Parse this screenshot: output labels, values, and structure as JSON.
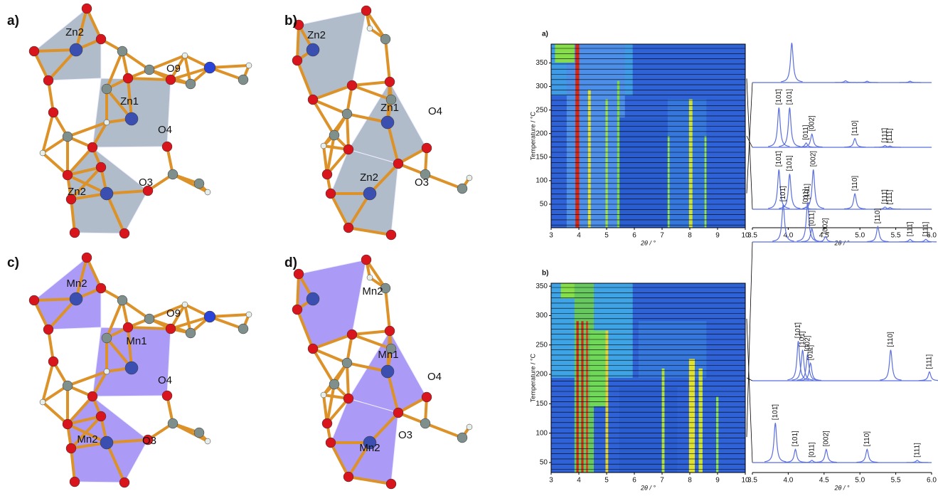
{
  "structures": [
    {
      "panel": "a)",
      "labels": [
        "Zn2",
        "Zn1",
        "O9",
        "O4",
        "Zn2",
        "O3"
      ]
    },
    {
      "panel": "b)",
      "labels": [
        "Zn2",
        "Zn1",
        "O4",
        "Zn2",
        "O3"
      ]
    },
    {
      "panel": "c)",
      "labels": [
        "Mn2",
        "Mn1",
        "O9",
        "O4",
        "Mn2",
        "O3"
      ]
    },
    {
      "panel": "d)",
      "labels": [
        "Mn2",
        "Mn1",
        "O4",
        "Mn2",
        "O3"
      ]
    }
  ],
  "charts": [
    {
      "panel": "a)",
      "contour": {
        "y_label": "Temperature / °C",
        "x_label": "2θ / °",
        "xlim": [
          3,
          10
        ],
        "xticks": [
          3,
          4,
          5,
          6,
          7,
          8,
          9,
          10
        ],
        "ylim": [
          0,
          390
        ],
        "yticks": [
          50,
          100,
          150,
          200,
          250,
          300,
          350
        ]
      },
      "patterns": {
        "x_label": "2θ / °",
        "xlim": [
          3.5,
          6.0
        ],
        "xticks": [
          3.5,
          {
            "value": 4,
            "label": "4.0"
          },
          4.5,
          {
            "value": 5,
            "label": "5.0"
          },
          5.5,
          {
            "value": 6,
            "label": "6.0"
          }
        ],
        "traces": [
          {
            "peaks": [
              {
                "x": 4.05,
                "height": 0.9
              },
              {
                "x": 4.8,
                "height": 0.04
              },
              {
                "x": 5.1,
                "height": 0.03
              },
              {
                "x": 5.7,
                "height": 0.03
              }
            ]
          },
          {
            "peaks": [
              {
                "x": 3.87,
                "height": 0.9,
                "label": "[101̄]"
              },
              {
                "x": 4.02,
                "height": 0.9,
                "label": "[101]"
              },
              {
                "x": 4.25,
                "height": 0.1,
                "label": "[011]"
              },
              {
                "x": 4.33,
                "height": 0.3,
                "label": "[002]"
              },
              {
                "x": 4.93,
                "height": 0.2,
                "label": "[110]"
              },
              {
                "x": 5.35,
                "height": 0.04,
                "label": "[111̄]"
              },
              {
                "x": 5.42,
                "height": 0.03,
                "label": "[111]"
              }
            ]
          },
          {
            "peaks": [
              {
                "x": 3.87,
                "height": 0.9,
                "label": "[101̄]"
              },
              {
                "x": 4.02,
                "height": 0.8,
                "label": "[101]"
              },
              {
                "x": 4.25,
                "height": 0.05,
                "label": "[011]"
              },
              {
                "x": 4.35,
                "height": 0.9,
                "label": "[002]"
              },
              {
                "x": 4.93,
                "height": 0.35,
                "label": "[110]"
              },
              {
                "x": 5.35,
                "height": 0.05,
                "label": "[111̄]"
              },
              {
                "x": 5.42,
                "height": 0.04,
                "label": "[111]"
              }
            ]
          }
        ]
      }
    },
    {
      "panel": "b)",
      "contour": {
        "y_label": "Temperature / °C",
        "x_label": "2θ / °",
        "xlim": [
          3,
          10
        ],
        "xticks": [
          3,
          4,
          5,
          6,
          7,
          8,
          9,
          10
        ],
        "ylim": [
          33,
          355
        ],
        "yticks": [
          50,
          100,
          150,
          200,
          250,
          300,
          350
        ]
      },
      "patterns": {
        "x_label": "2θ / °",
        "xlim": [
          3.5,
          6.0
        ],
        "xticks": [
          3.5,
          {
            "value": 4,
            "label": "4.0"
          },
          4.5,
          {
            "value": 5,
            "label": "5.0"
          },
          5.5,
          {
            "value": 6,
            "label": "6.0"
          }
        ],
        "traces": [
          {
            "peaks": [
              {
                "x": 3.93,
                "height": 0.85,
                "label": "[101̄]"
              },
              {
                "x": 4.27,
                "height": 0.9,
                "label": "[101]"
              },
              {
                "x": 4.33,
                "height": 0.3,
                "label": "[011]"
              },
              {
                "x": 4.52,
                "height": 0.12,
                "label": "[002]"
              },
              {
                "x": 5.25,
                "height": 0.35,
                "label": "[110]"
              },
              {
                "x": 5.7,
                "height": 0.06,
                "label": "[111̄]"
              },
              {
                "x": 5.92,
                "height": 0.06,
                "label": "[111]"
              }
            ]
          },
          {
            "peaks": [
              {
                "x": 4.14,
                "height": 0.9,
                "label": "[101̄]"
              },
              {
                "x": 4.2,
                "height": 0.7,
                "label": "[101]"
              },
              {
                "x": 4.27,
                "height": 0.6,
                "label": "[002]"
              },
              {
                "x": 4.31,
                "height": 0.4,
                "label": "[011]"
              },
              {
                "x": 5.43,
                "height": 0.7,
                "label": "[110]"
              },
              {
                "x": 5.97,
                "height": 0.2,
                "label": "[111]"
              }
            ]
          },
          {
            "peaks": [
              {
                "x": 3.82,
                "height": 0.9,
                "label": "[101̄]"
              },
              {
                "x": 4.1,
                "height": 0.3,
                "label": "[101]"
              },
              {
                "x": 4.33,
                "height": 0.05,
                "label": "[011]"
              },
              {
                "x": 4.53,
                "height": 0.3,
                "label": "[002]"
              },
              {
                "x": 5.1,
                "height": 0.3,
                "label": "[110]"
              },
              {
                "x": 5.8,
                "height": 0.05,
                "label": "[111]"
              }
            ]
          }
        ]
      }
    }
  ]
}
